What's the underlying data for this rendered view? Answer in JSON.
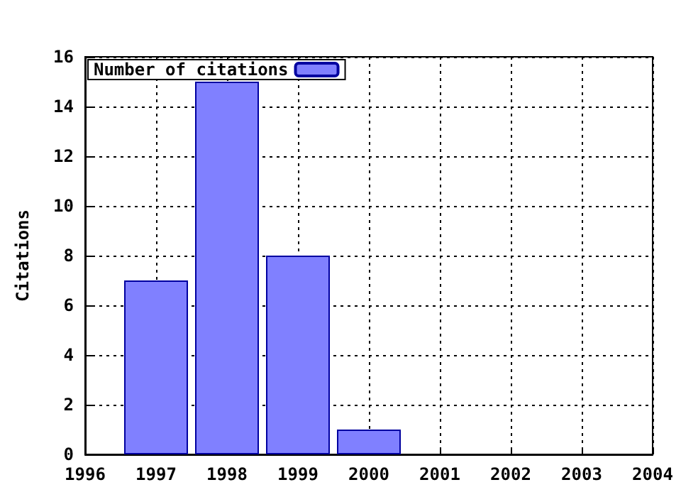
{
  "chart_data": {
    "type": "bar",
    "ylabel": "Citations",
    "x": [
      1997,
      1998,
      1999,
      2000
    ],
    "series": [
      {
        "name": "Number of citations",
        "color": "#8080ff",
        "values": [
          7,
          15,
          8,
          1
        ]
      }
    ],
    "xlim": [
      1996,
      2004
    ],
    "xticks": [
      1996,
      1997,
      1998,
      1999,
      2000,
      2001,
      2002,
      2003,
      2004
    ],
    "ylim": [
      0,
      16
    ],
    "yticks": [
      0,
      2,
      4,
      6,
      8,
      10,
      12,
      14,
      16
    ],
    "grid": true,
    "legend": "top left"
  }
}
